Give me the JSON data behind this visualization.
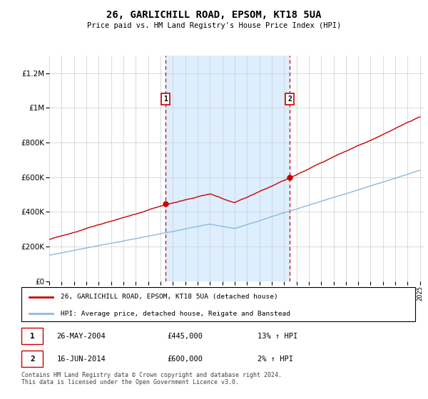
{
  "title": "26, GARLICHILL ROAD, EPSOM, KT18 5UA",
  "subtitle": "Price paid vs. HM Land Registry's House Price Index (HPI)",
  "ylim": [
    0,
    1300000
  ],
  "yticks": [
    0,
    200000,
    400000,
    600000,
    800000,
    1000000,
    1200000
  ],
  "ytick_labels": [
    "£0",
    "£200K",
    "£400K",
    "£600K",
    "£800K",
    "£1M",
    "£1.2M"
  ],
  "sale1_date": "26-MAY-2004",
  "sale1_price": 445000,
  "sale1_hpi": "13% ↑ HPI",
  "sale2_date": "16-JUN-2014",
  "sale2_price": 600000,
  "sale2_hpi": "2% ↑ HPI",
  "line1_label": "26, GARLICHILL ROAD, EPSOM, KT18 5UA (detached house)",
  "line2_label": "HPI: Average price, detached house, Reigate and Banstead",
  "footer": "Contains HM Land Registry data © Crown copyright and database right 2024.\nThis data is licensed under the Open Government Licence v3.0.",
  "sale1_x": 2004.4,
  "sale2_x": 2014.45,
  "xstart": 1995,
  "xend": 2025,
  "shade_color": "#ddeeff",
  "vline_color": "#cc0000",
  "line1_color": "#cc0000",
  "line2_color": "#88bbdd",
  "marker_box_color": "#cc0000",
  "grid_color": "#cccccc",
  "title_fontsize": 10,
  "subtitle_fontsize": 8
}
